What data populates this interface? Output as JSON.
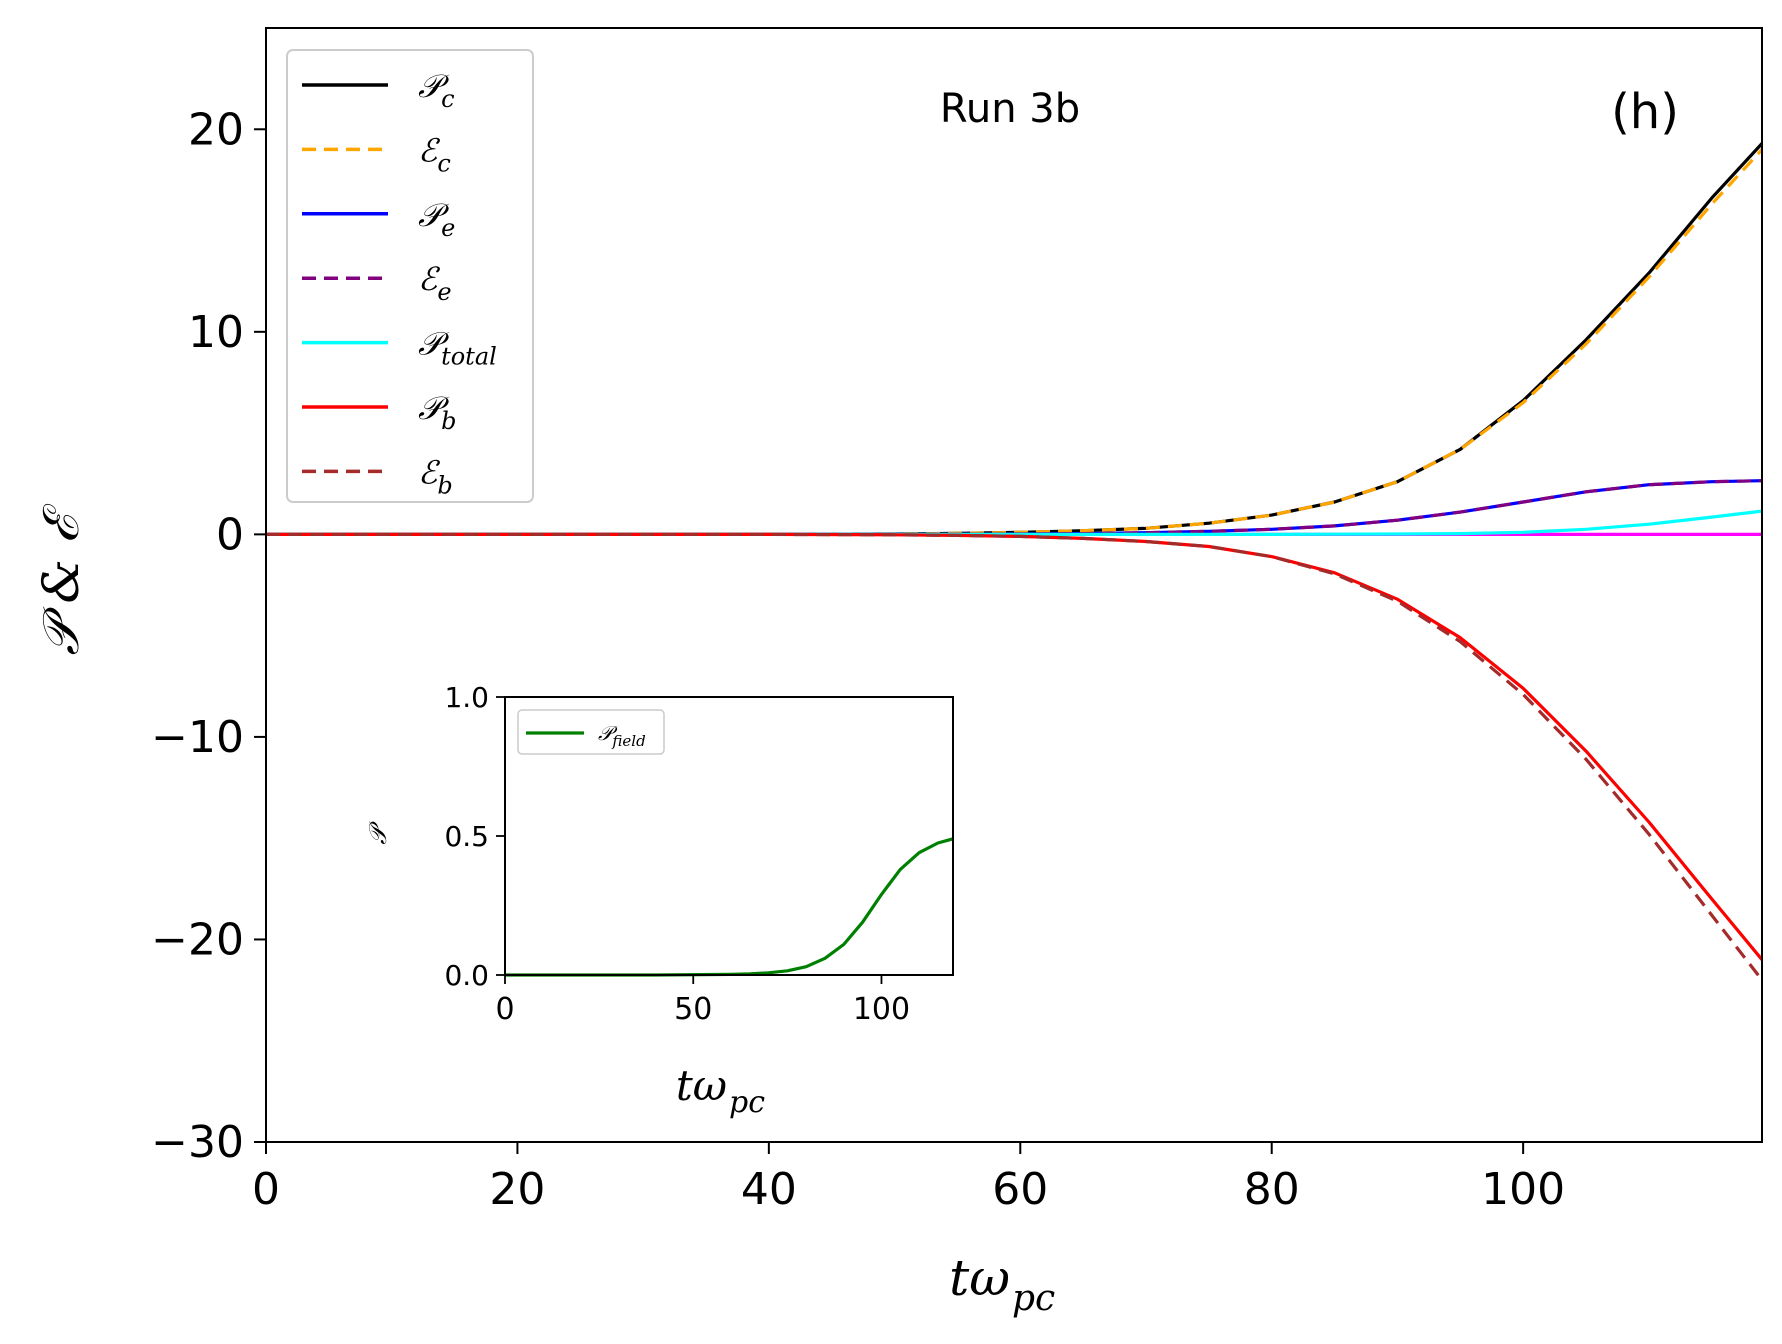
{
  "chart_data": [
    {
      "type": "line",
      "title": "Run 3b",
      "panel_label": "(h)",
      "xlabel": "tω",
      "xlabel_sub": "pc",
      "ylabel": "𝒫 & ℰ",
      "xlim": [
        0,
        119
      ],
      "ylim": [
        -30,
        25
      ],
      "xticks": [
        0,
        20,
        40,
        60,
        80,
        100
      ],
      "yticks": [
        -30,
        -20,
        -10,
        0,
        10,
        20
      ],
      "grid": false,
      "legend_position": "upper-left",
      "x": [
        0,
        10,
        20,
        30,
        40,
        50,
        55,
        60,
        65,
        70,
        75,
        80,
        85,
        90,
        95,
        100,
        105,
        110,
        115,
        119
      ],
      "series": [
        {
          "name": "𝒫",
          "sub": "c",
          "color": "#000000",
          "style": "solid",
          "values": [
            0,
            0,
            0,
            0,
            0,
            0.02,
            0.05,
            0.1,
            0.18,
            0.3,
            0.55,
            0.95,
            1.6,
            2.6,
            4.2,
            6.6,
            9.6,
            12.9,
            16.6,
            19.3
          ]
        },
        {
          "name": "ℰ",
          "sub": "c",
          "color": "#ffa500",
          "style": "dashed",
          "values": [
            0,
            0,
            0,
            0,
            0,
            0.02,
            0.05,
            0.1,
            0.18,
            0.3,
            0.55,
            0.95,
            1.6,
            2.6,
            4.2,
            6.5,
            9.4,
            12.7,
            16.3,
            19.0
          ]
        },
        {
          "name": "𝒫",
          "sub": "e",
          "color": "#0000ff",
          "style": "solid",
          "values": [
            0,
            0,
            0,
            0,
            0,
            0,
            0.01,
            0.02,
            0.04,
            0.08,
            0.15,
            0.25,
            0.42,
            0.7,
            1.1,
            1.6,
            2.1,
            2.45,
            2.6,
            2.65
          ]
        },
        {
          "name": "ℰ",
          "sub": "e",
          "color": "#800080",
          "style": "dashed",
          "values": [
            0,
            0,
            0,
            0,
            0,
            0,
            0.01,
            0.02,
            0.04,
            0.08,
            0.15,
            0.25,
            0.42,
            0.7,
            1.1,
            1.6,
            2.1,
            2.45,
            2.6,
            2.65
          ]
        },
        {
          "name": "𝒫",
          "sub": "total",
          "color": "#00ffff",
          "style": "solid",
          "values": [
            0,
            0,
            0,
            0,
            0,
            0,
            0,
            0,
            0,
            0,
            0,
            0,
            0.01,
            0.02,
            0.04,
            0.1,
            0.25,
            0.5,
            0.85,
            1.15
          ]
        },
        {
          "name": "𝒫",
          "sub": "b",
          "color": "#ff0000",
          "style": "solid",
          "values": [
            0,
            0,
            0,
            0,
            0,
            -0.02,
            -0.05,
            -0.1,
            -0.2,
            -0.35,
            -0.6,
            -1.1,
            -1.9,
            -3.2,
            -5.1,
            -7.6,
            -10.7,
            -14.2,
            -18.0,
            -21.0
          ]
        },
        {
          "name": "ℰ",
          "sub": "b",
          "color": "#a52a2a",
          "style": "dashed",
          "values": [
            0,
            0,
            0,
            0,
            0,
            -0.02,
            -0.05,
            -0.1,
            -0.2,
            -0.35,
            -0.6,
            -1.1,
            -1.95,
            -3.3,
            -5.3,
            -7.9,
            -11.1,
            -14.8,
            -18.8,
            -22.0
          ]
        },
        {
          "name": "zero",
          "color": "#ff00ff",
          "style": "solid",
          "legend": false,
          "values": [
            0,
            0,
            0,
            0,
            0,
            0,
            0,
            0,
            0,
            0,
            0,
            0,
            0,
            0,
            0,
            0,
            0,
            0,
            0,
            0
          ]
        }
      ]
    },
    {
      "type": "line",
      "xlabel": "tω",
      "xlabel_sub": "pc",
      "ylabel": "𝒫",
      "xlim": [
        0,
        119
      ],
      "ylim": [
        0,
        1
      ],
      "xticks": [
        0,
        50,
        100
      ],
      "ytick_labels": [
        "0.0",
        "0.5",
        "1.0"
      ],
      "yticks": [
        0,
        0.5,
        1
      ],
      "legend_position": "upper-left",
      "x": [
        0,
        20,
        40,
        60,
        65,
        70,
        75,
        80,
        85,
        90,
        95,
        100,
        105,
        110,
        115,
        119
      ],
      "series": [
        {
          "name": "𝒫",
          "sub": "field",
          "color": "#008000",
          "style": "solid",
          "values": [
            0,
            0,
            0,
            0.002,
            0.004,
            0.008,
            0.015,
            0.03,
            0.06,
            0.11,
            0.19,
            0.29,
            0.38,
            0.44,
            0.475,
            0.49
          ]
        }
      ]
    }
  ]
}
